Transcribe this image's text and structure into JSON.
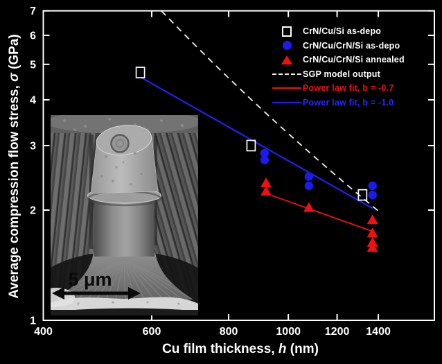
{
  "figure": {
    "background": "#000000",
    "frame_color": "#ffffff",
    "accent_blue": "#1b1bef",
    "accent_red": "#ee1111",
    "dashed_line_color": "#f0f0f0"
  },
  "axes": {
    "x": {
      "title_parts": {
        "prefix": "Cu film thickness, ",
        "symbol": "h",
        "suffix": " (nm)"
      },
      "scale": "log",
      "ticks": [
        400,
        600,
        800,
        1000,
        1200,
        1400
      ],
      "tick_labels": [
        "400",
        "600",
        "800",
        "1000",
        "1200",
        "1400"
      ]
    },
    "y": {
      "title_parts": {
        "prefix": "Average compression flow stress, ",
        "symbol": "σ",
        "suffix": " (GPa)"
      },
      "scale": "log",
      "ticks": [
        1,
        2,
        3,
        4,
        5,
        6,
        7
      ],
      "tick_labels": [
        "1",
        "2",
        "3",
        "4",
        "5",
        "6",
        "7"
      ]
    }
  },
  "legend": {
    "position": "top-right",
    "items": [
      {
        "marker": "open-square",
        "label": "CrN/Cu/Si as-depo",
        "color": "#ffffff",
        "label_color": "#ffffff"
      },
      {
        "marker": "filled-circle",
        "label": "CrN/Cu/CrN/Si as-depo",
        "color": "#1b1bef",
        "label_color": "#ffffff"
      },
      {
        "marker": "filled-triangle",
        "label": "CrN/Cu/CrN/Si annealed",
        "color": "#ee1111",
        "label_color": "#ffffff"
      },
      {
        "marker": "dashed-line",
        "label": "SGP model output",
        "color": "#f0f0f0",
        "label_color": "#ffffff"
      },
      {
        "marker": "solid-line",
        "label": "Power law fit, b = -0.7",
        "color": "#ee1111",
        "label_color": "#ee1111"
      },
      {
        "marker": "solid-line",
        "label": "Power law fit, b = -1.0",
        "color": "#2222ee",
        "label_color": "#2828ff"
      }
    ]
  },
  "chart_data": {
    "type": "scatter",
    "x_scale": "log",
    "y_scale": "log",
    "xlabel": "Cu film thickness, h (nm)",
    "ylabel": "Average compression flow stress, σ (GPa)",
    "xlim": [
      400,
      1730
    ],
    "ylim": [
      1,
      7
    ],
    "grid": false,
    "legend_position": "top-right",
    "series": [
      {
        "name": "CrN/Cu/Si as-depo",
        "marker": "open-square",
        "color": "#ffffff",
        "points": [
          [
            575,
            4.75
          ],
          [
            870,
            3.0
          ],
          [
            1320,
            2.2
          ]
        ]
      },
      {
        "name": "CrN/Cu/CrN/Si as-depo",
        "marker": "filled-circle",
        "color": "#1b1bef",
        "points": [
          [
            915,
            2.86
          ],
          [
            915,
            2.74
          ],
          [
            1080,
            2.47
          ],
          [
            1080,
            2.33
          ],
          [
            1370,
            2.33
          ],
          [
            1370,
            2.2
          ]
        ]
      },
      {
        "name": "CrN/Cu/CrN/Si annealed",
        "marker": "filled-triangle",
        "color": "#ee1111",
        "points": [
          [
            920,
            2.37
          ],
          [
            920,
            2.25
          ],
          [
            1080,
            2.03
          ],
          [
            1370,
            1.88
          ],
          [
            1370,
            1.73
          ],
          [
            1370,
            1.63
          ],
          [
            1370,
            1.58
          ]
        ]
      }
    ],
    "lines": [
      {
        "name": "SGP model output",
        "style": "dashed",
        "color": "#f0f0f0",
        "from": [
          622,
          7.0
        ],
        "to": [
          1410,
          1.97
        ],
        "curved": true
      },
      {
        "name": "Power law fit, b = -0.7",
        "b": -0.7,
        "style": "solid",
        "color": "#ee1111",
        "from": [
          921,
          2.22
        ],
        "to": [
          1382,
          1.74
        ]
      },
      {
        "name": "Power law fit, b = -1.0",
        "b": -1.0,
        "style": "solid",
        "color": "#2222ee",
        "from": [
          577,
          4.6
        ],
        "to": [
          1371,
          2.02
        ]
      }
    ]
  },
  "inset": {
    "content": "SEM micrograph of a compressed micropillar",
    "scale_label": "5 μm"
  }
}
